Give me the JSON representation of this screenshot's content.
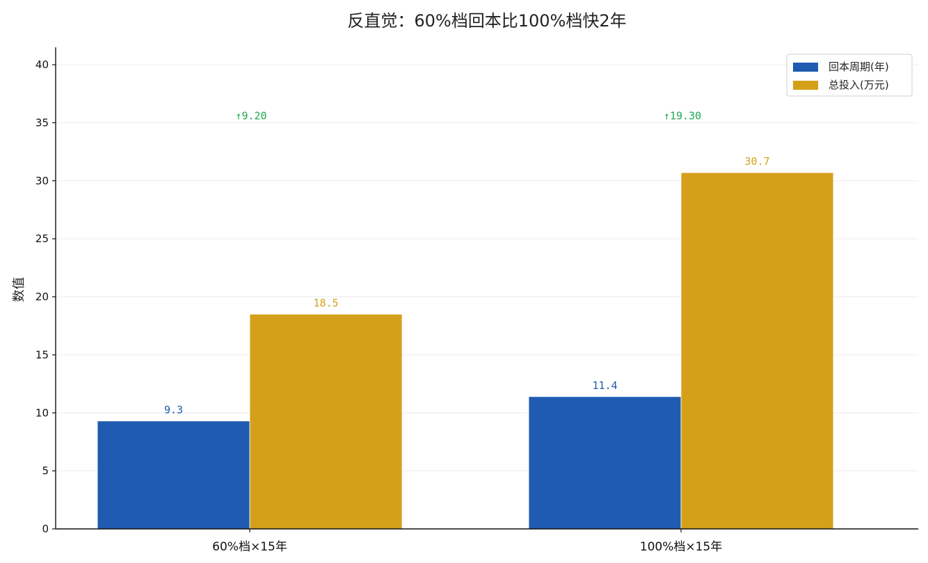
{
  "chart_data": {
    "type": "bar",
    "title": "反直觉：60%档回本比100%档快2年",
    "xlabel": "",
    "ylabel": "数值",
    "ylim": [
      0,
      41.5
    ],
    "yticks": [
      0,
      5,
      10,
      15,
      20,
      25,
      30,
      35,
      40
    ],
    "grid": "horizontal",
    "legend_position": "top-right",
    "categories": [
      "60%档×15年",
      "100%档×15年"
    ],
    "series": [
      {
        "name": "回本周期(年)",
        "values": [
          9.3,
          11.4
        ],
        "labels": [
          "9.3",
          "11.4"
        ],
        "color": "#1f5bb0"
      },
      {
        "name": "总投入(万元)",
        "values": [
          18.5,
          30.7
        ],
        "labels": [
          "18.5",
          "30.7"
        ],
        "color": "#d4a01a"
      }
    ],
    "annotations": [
      {
        "category": "60%档×15年",
        "text": "↑9.20",
        "y": 35.6,
        "color": "#1fa84f"
      },
      {
        "category": "100%档×15年",
        "text": "↑19.30",
        "y": 35.6,
        "color": "#1fa84f"
      }
    ]
  }
}
